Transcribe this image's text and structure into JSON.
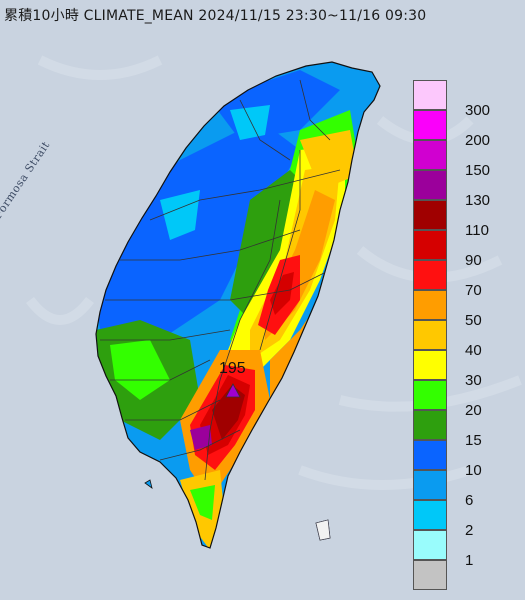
{
  "title": "累積10小時 CLIMATE_MEAN 2024/11/15 23:30~11/16 09:30",
  "strait_label": "Formosa Strait",
  "max_marker": {
    "value": "195",
    "symbol": "triangle-marker",
    "color": "#a000d0"
  },
  "legend": {
    "items": [
      {
        "label": "300",
        "color": "#fcc8fc"
      },
      {
        "label": "200",
        "color": "#fa00fa"
      },
      {
        "label": "150",
        "color": "#d000d0"
      },
      {
        "label": "130",
        "color": "#9b009b"
      },
      {
        "label": "110",
        "color": "#a00000"
      },
      {
        "label": "90",
        "color": "#d50000"
      },
      {
        "label": "70",
        "color": "#ff1010"
      },
      {
        "label": "50",
        "color": "#ff9d00"
      },
      {
        "label": "40",
        "color": "#ffc800"
      },
      {
        "label": "30",
        "color": "#ffff00"
      },
      {
        "label": "20",
        "color": "#33ff00"
      },
      {
        "label": "15",
        "color": "#2e9f0e"
      },
      {
        "label": "10",
        "color": "#0a64ff"
      },
      {
        "label": "6",
        "color": "#0a9bf0"
      },
      {
        "label": "2",
        "color": "#00c8f8"
      },
      {
        "label": "1",
        "color": "#99fcfc"
      },
      {
        "label": "",
        "color": "#c3c3c3"
      }
    ]
  },
  "colors": {
    "sea": "#c9d3e0",
    "outline": "#111111",
    "county_border": "#333333"
  }
}
